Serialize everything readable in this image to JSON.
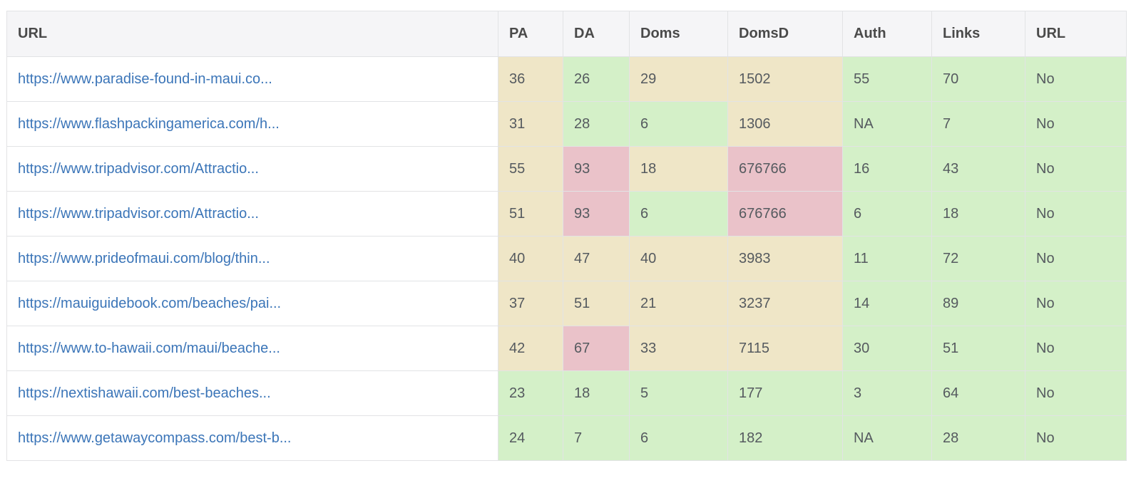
{
  "colors": {
    "green": "#d4f0c8",
    "yellow": "#efe6c7",
    "red": "#eac2c9",
    "link": "#3b75b8",
    "header_bg": "#f5f5f7"
  },
  "table": {
    "columns": [
      "URL",
      "PA",
      "DA",
      "Doms",
      "DomsD",
      "Auth",
      "Links",
      "URL"
    ],
    "rows": [
      {
        "url": "https://www.paradise-found-in-maui.co...",
        "pa": "36",
        "da": "26",
        "doms": "29",
        "domsd": "1502",
        "auth": "55",
        "links": "70",
        "url2": "No",
        "status": [
          "yellow",
          "green",
          "yellow",
          "yellow",
          "green",
          "green",
          "green"
        ]
      },
      {
        "url": "https://www.flashpackingamerica.com/h...",
        "pa": "31",
        "da": "28",
        "doms": "6",
        "domsd": "1306",
        "auth": "NA",
        "links": "7",
        "url2": "No",
        "status": [
          "yellow",
          "green",
          "green",
          "yellow",
          "green",
          "green",
          "green"
        ]
      },
      {
        "url": "https://www.tripadvisor.com/Attractio...",
        "pa": "55",
        "da": "93",
        "doms": "18",
        "domsd": "676766",
        "auth": "16",
        "links": "43",
        "url2": "No",
        "status": [
          "yellow",
          "red",
          "yellow",
          "red",
          "green",
          "green",
          "green"
        ]
      },
      {
        "url": "https://www.tripadvisor.com/Attractio...",
        "pa": "51",
        "da": "93",
        "doms": "6",
        "domsd": "676766",
        "auth": "6",
        "links": "18",
        "url2": "No",
        "status": [
          "yellow",
          "red",
          "green",
          "red",
          "green",
          "green",
          "green"
        ]
      },
      {
        "url": "https://www.prideofmaui.com/blog/thin...",
        "pa": "40",
        "da": "47",
        "doms": "40",
        "domsd": "3983",
        "auth": "11",
        "links": "72",
        "url2": "No",
        "status": [
          "yellow",
          "yellow",
          "yellow",
          "yellow",
          "green",
          "green",
          "green"
        ]
      },
      {
        "url": "https://mauiguidebook.com/beaches/pai...",
        "pa": "37",
        "da": "51",
        "doms": "21",
        "domsd": "3237",
        "auth": "14",
        "links": "89",
        "url2": "No",
        "status": [
          "yellow",
          "yellow",
          "yellow",
          "yellow",
          "green",
          "green",
          "green"
        ]
      },
      {
        "url": "https://www.to-hawaii.com/maui/beache...",
        "pa": "42",
        "da": "67",
        "doms": "33",
        "domsd": "7115",
        "auth": "30",
        "links": "51",
        "url2": "No",
        "status": [
          "yellow",
          "red",
          "yellow",
          "yellow",
          "green",
          "green",
          "green"
        ]
      },
      {
        "url": "https://nextishawaii.com/best-beaches...",
        "pa": "23",
        "da": "18",
        "doms": "5",
        "domsd": "177",
        "auth": "3",
        "links": "64",
        "url2": "No",
        "status": [
          "green",
          "green",
          "green",
          "green",
          "green",
          "green",
          "green"
        ]
      },
      {
        "url": "https://www.getawaycompass.com/best-b...",
        "pa": "24",
        "da": "7",
        "doms": "6",
        "domsd": "182",
        "auth": "NA",
        "links": "28",
        "url2": "No",
        "status": [
          "green",
          "green",
          "green",
          "green",
          "green",
          "green",
          "green"
        ]
      }
    ]
  }
}
